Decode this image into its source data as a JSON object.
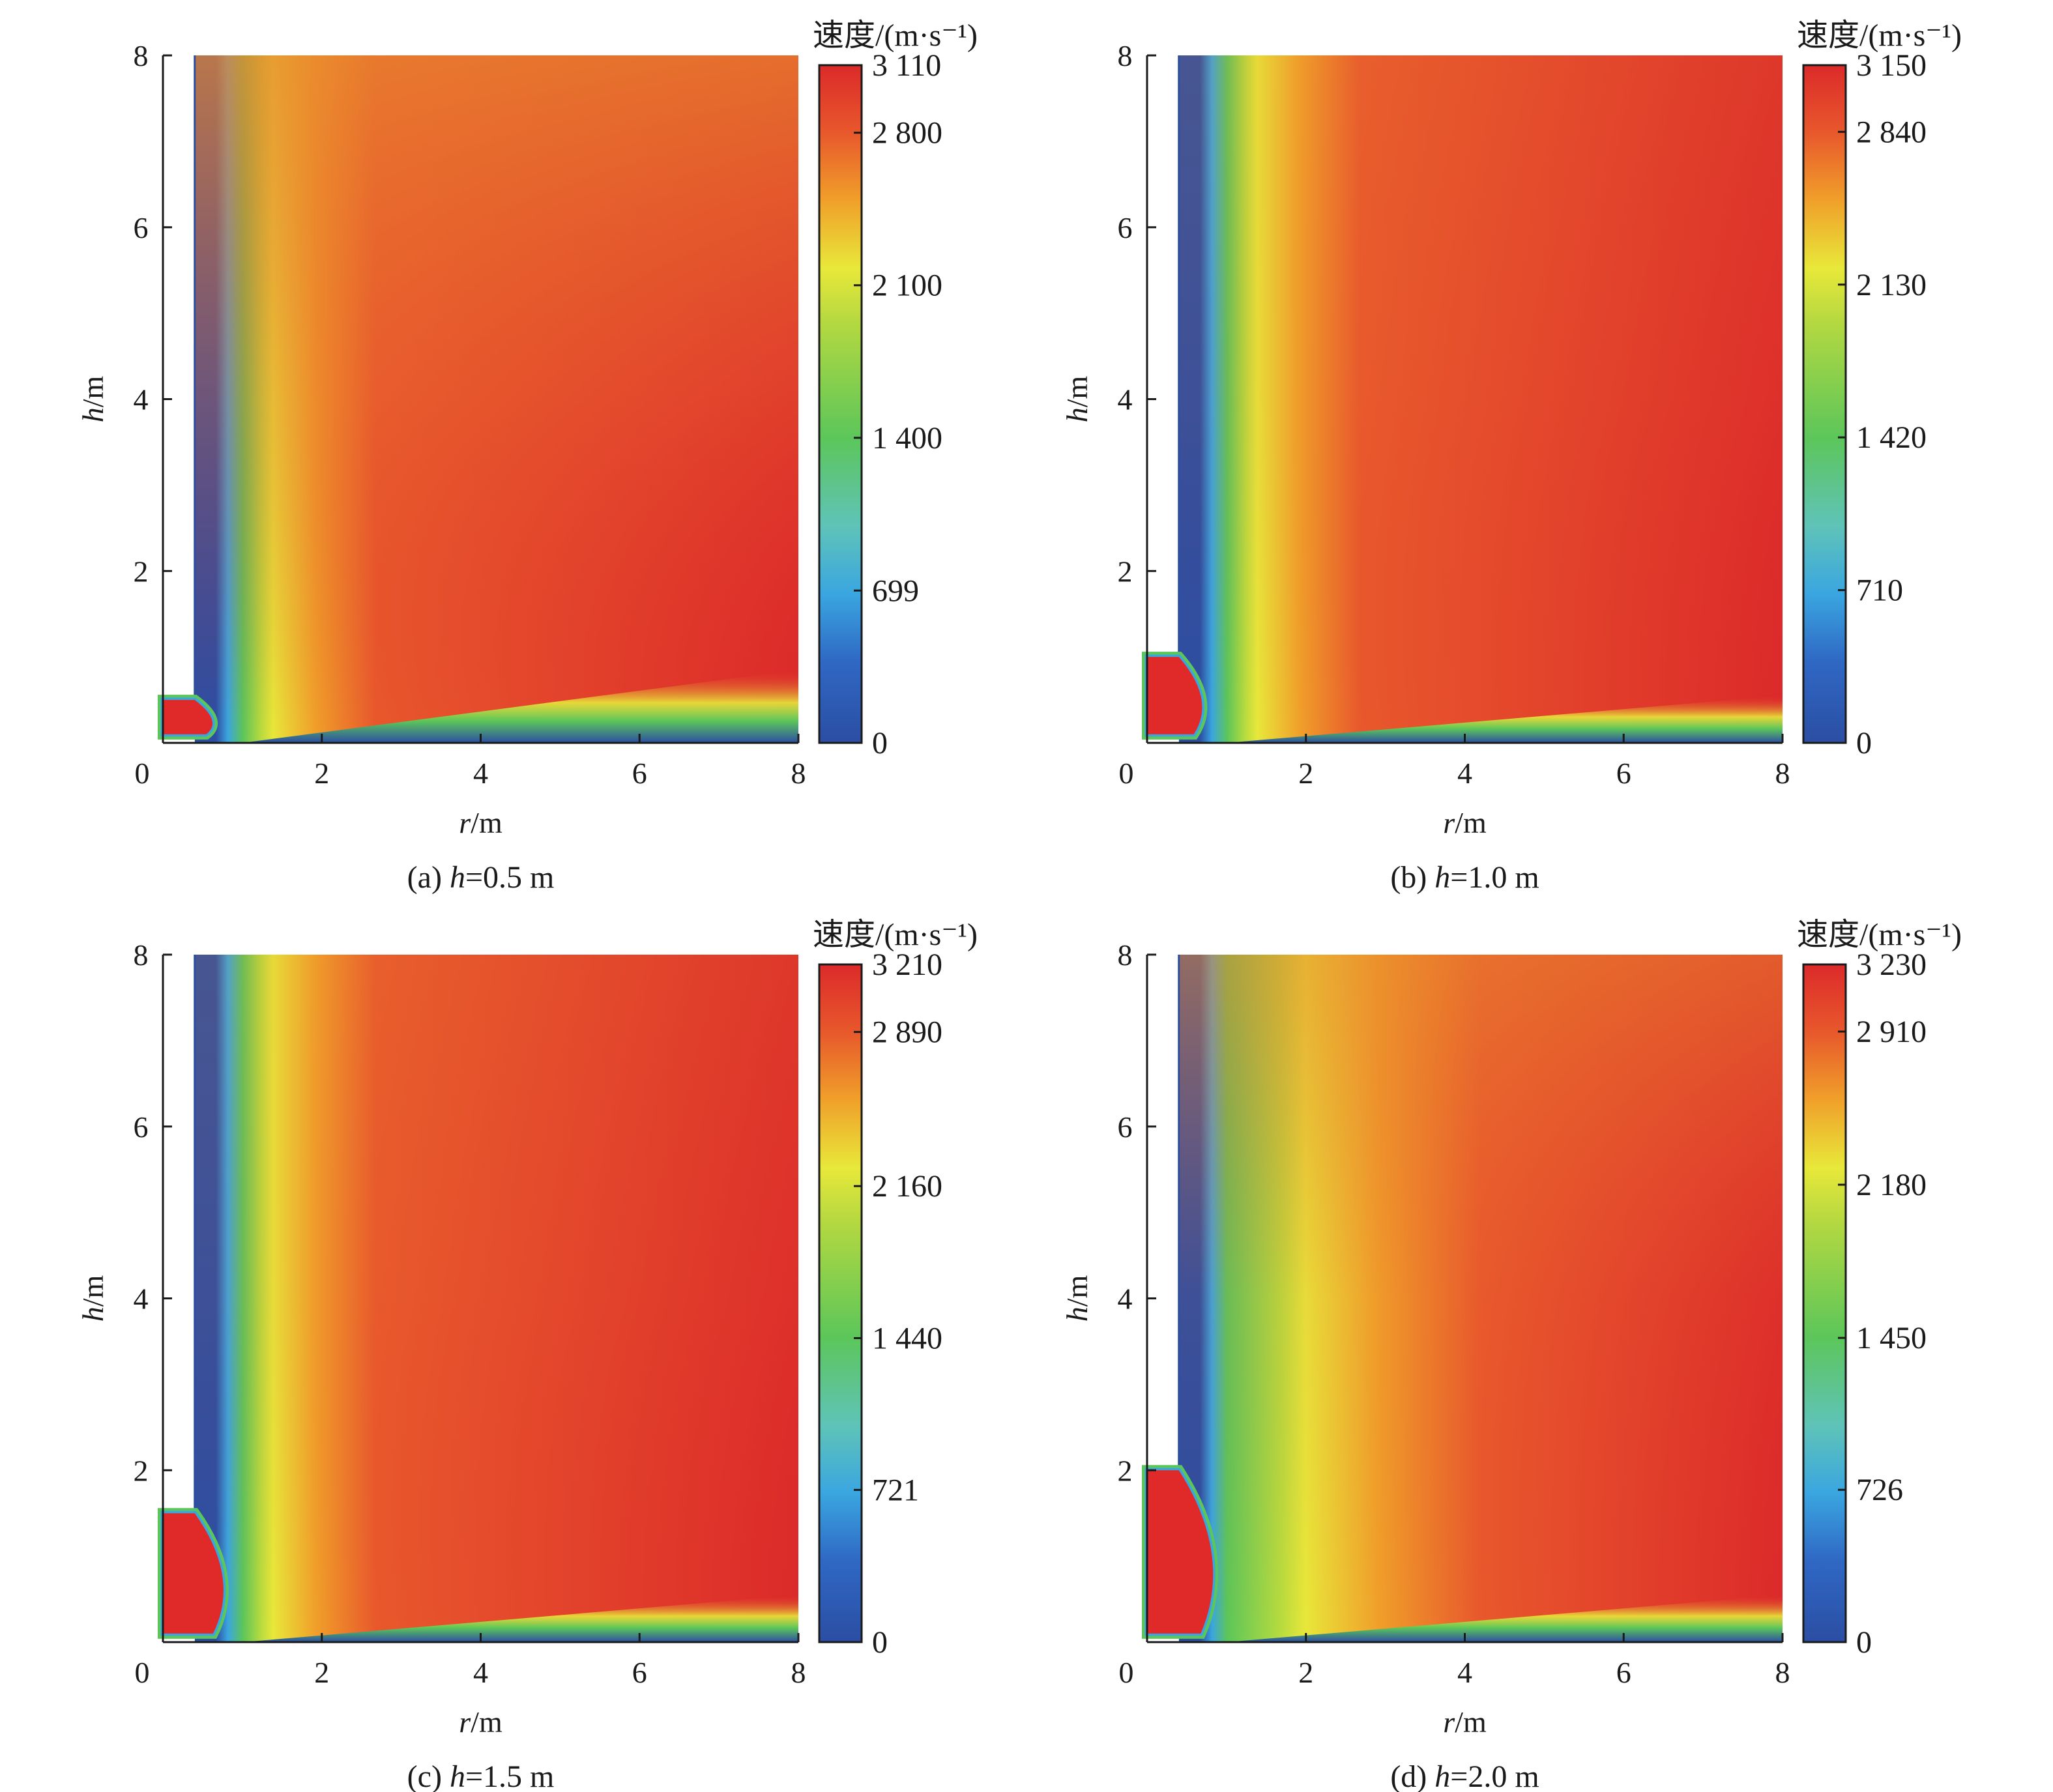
{
  "chart_data": [
    {
      "type": "heatmap",
      "panel": "a",
      "caption": "(a) h=0.5 m",
      "caption_prefix": "(a) ",
      "caption_var": "h",
      "caption_value": "=0.5 m",
      "xlabel_var": "r",
      "xlabel_unit": "/m",
      "ylabel_var": "h",
      "ylabel_unit": "/m",
      "xlim": [
        0,
        8
      ],
      "ylim": [
        0,
        8
      ],
      "x_ticks": [
        "0",
        "2",
        "4",
        "6",
        "8"
      ],
      "y_ticks": [
        "2",
        "4",
        "6",
        "8"
      ],
      "colorbar_title": "速度/(m·s⁻¹)",
      "colorbar_range": [
        0,
        3110
      ],
      "colorbar_ticks": [
        "3 110",
        "2 800",
        "2 100",
        "1 400",
        "699",
        "0"
      ],
      "colorbar_tick_values": [
        3110,
        2800,
        2100,
        1400,
        699,
        0
      ],
      "charge_height": 0.5,
      "wall_radius": 0.4
    },
    {
      "type": "heatmap",
      "panel": "b",
      "caption": "(b) h=1.0 m",
      "caption_prefix": "(b) ",
      "caption_var": "h",
      "caption_value": "=1.0 m",
      "xlabel_var": "r",
      "xlabel_unit": "/m",
      "ylabel_var": "h",
      "ylabel_unit": "/m",
      "xlim": [
        0,
        8
      ],
      "ylim": [
        0,
        8
      ],
      "x_ticks": [
        "0",
        "2",
        "4",
        "6",
        "8"
      ],
      "y_ticks": [
        "2",
        "4",
        "6",
        "8"
      ],
      "colorbar_title": "速度/(m·s⁻¹)",
      "colorbar_range": [
        0,
        3150
      ],
      "colorbar_ticks": [
        "3 150",
        "2 840",
        "2 130",
        "1 420",
        "710",
        "0"
      ],
      "colorbar_tick_values": [
        3150,
        2840,
        2130,
        1420,
        710,
        0
      ],
      "charge_height": 1.0,
      "wall_radius": 0.4
    },
    {
      "type": "heatmap",
      "panel": "c",
      "caption": "(c) h=1.5 m",
      "caption_prefix": "(c) ",
      "caption_var": "h",
      "caption_value": "=1.5 m",
      "xlabel_var": "r",
      "xlabel_unit": "/m",
      "ylabel_var": "h",
      "ylabel_unit": "/m",
      "xlim": [
        0,
        8
      ],
      "ylim": [
        0,
        8
      ],
      "x_ticks": [
        "0",
        "2",
        "4",
        "6",
        "8"
      ],
      "y_ticks": [
        "2",
        "4",
        "6",
        "8"
      ],
      "colorbar_title": "速度/(m·s⁻¹)",
      "colorbar_range": [
        0,
        3210
      ],
      "colorbar_ticks": [
        "3 210",
        "2 890",
        "2 160",
        "1 440",
        "721",
        "0"
      ],
      "colorbar_tick_values": [
        3210,
        2890,
        2160,
        1440,
        721,
        0
      ],
      "charge_height": 1.5,
      "wall_radius": 0.4
    },
    {
      "type": "heatmap",
      "panel": "d",
      "caption": "(d) h=2.0 m",
      "caption_prefix": "(d) ",
      "caption_var": "h",
      "caption_value": "=2.0 m",
      "xlabel_var": "r",
      "xlabel_unit": "/m",
      "ylabel_var": "h",
      "ylabel_unit": "/m",
      "xlim": [
        0,
        8
      ],
      "ylim": [
        0,
        8
      ],
      "x_ticks": [
        "0",
        "2",
        "4",
        "6",
        "8"
      ],
      "y_ticks": [
        "2",
        "4",
        "6",
        "8"
      ],
      "colorbar_title": "速度/(m·s⁻¹)",
      "colorbar_range": [
        0,
        3230
      ],
      "colorbar_ticks": [
        "3 230",
        "2 910",
        "2 180",
        "1 450",
        "726",
        "0"
      ],
      "colorbar_tick_values": [
        3230,
        2910,
        2180,
        1450,
        726,
        0
      ],
      "charge_height": 2.0,
      "wall_radius": 0.4
    }
  ],
  "colors": {
    "colormap": [
      "#2b4ea3",
      "#3aa6e0",
      "#5cc65a",
      "#e8e83a",
      "#f0a02a",
      "#e03a2e",
      "#dc2a2a"
    ],
    "field_high": "#e02c2a",
    "field_mid": "#e8642e",
    "jet_blue": "#2b4ea3",
    "jet_green": "#5cc65a",
    "jet_yellow": "#e8e83a",
    "charge": "#e02a2a",
    "axis": "#1a1a1a"
  }
}
